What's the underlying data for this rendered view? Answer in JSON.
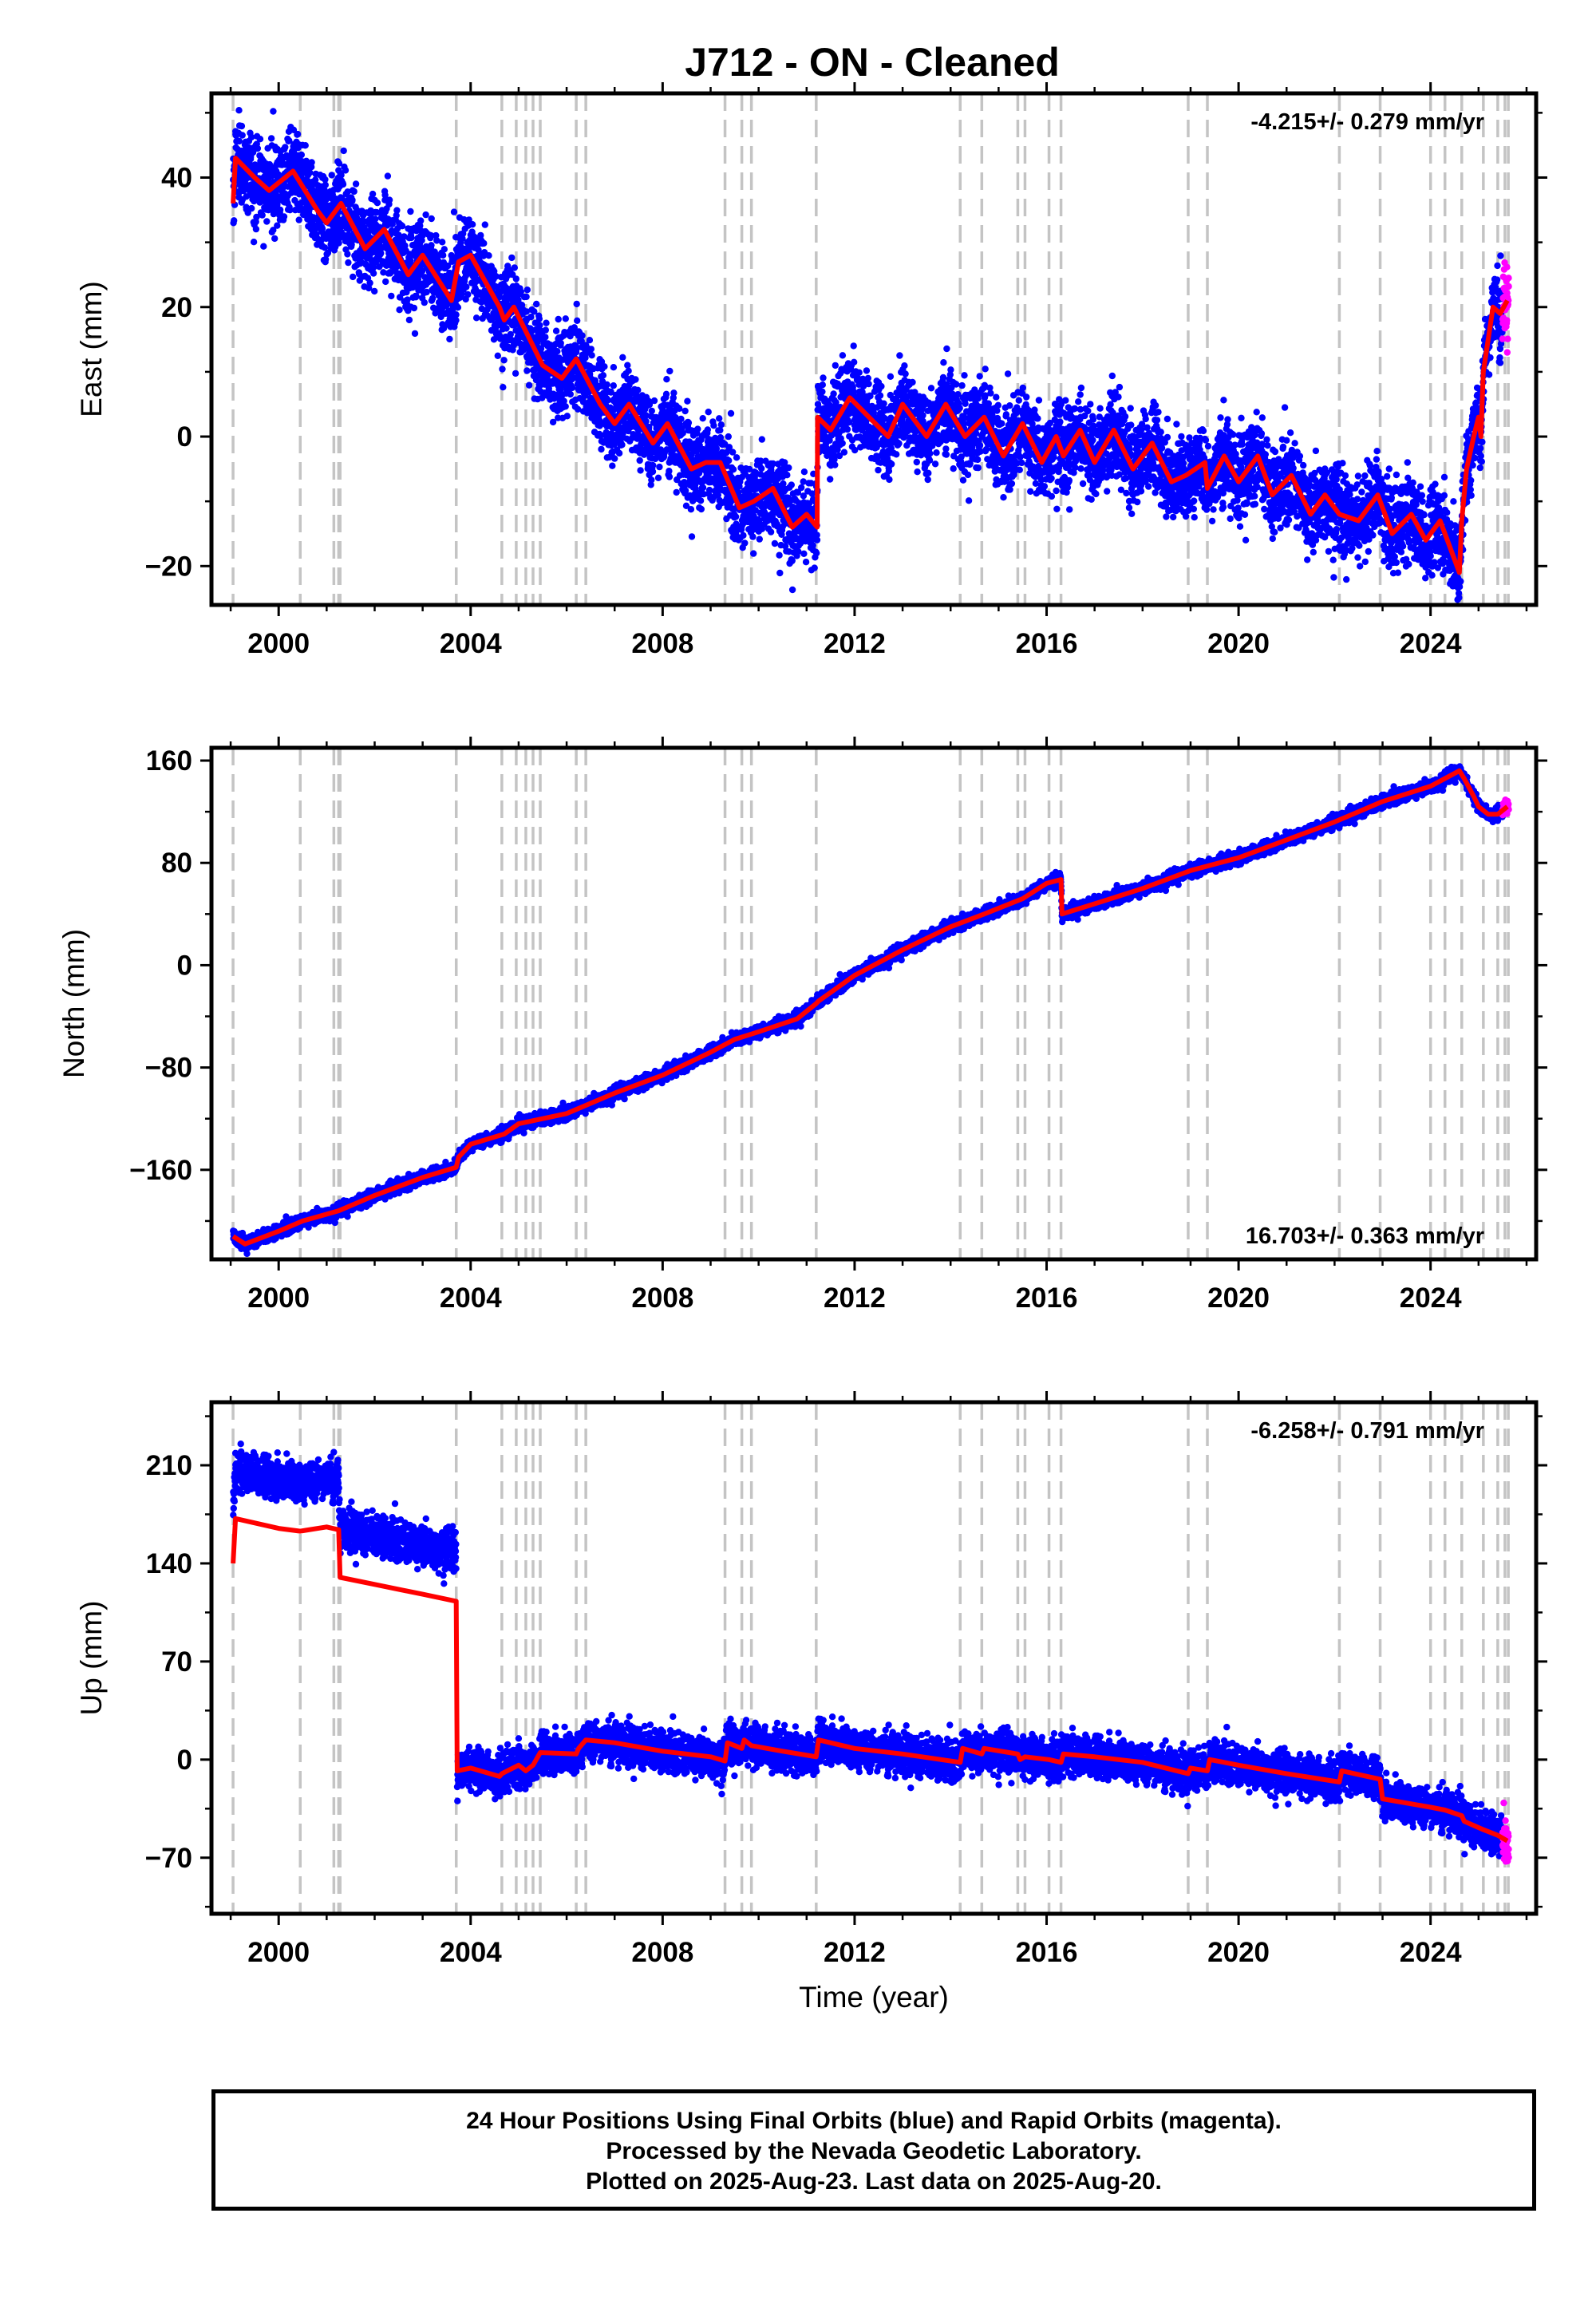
{
  "chart_data": [
    {
      "type": "scatter",
      "title": "J712  - ON - Cleaned",
      "xlabel": "",
      "ylabel": "East (mm)",
      "xlim": [
        1998.6,
        2026.2
      ],
      "ylim": [
        -26,
        53
      ],
      "xticks": [
        2000,
        2004,
        2008,
        2012,
        2016,
        2020,
        2024
      ],
      "xtick_labels": [
        "2000",
        "2004",
        "2008",
        "2012",
        "2016",
        "2020",
        "2024"
      ],
      "yticks": [
        -20,
        0,
        20,
        40
      ],
      "ytick_labels": [
        "−20",
        "0",
        "20",
        "40"
      ],
      "rate_label": "-4.215+/- 0.279 mm/yr",
      "rate_position": "top-right",
      "grid": false,
      "data_start": 1999.05,
      "data_end": 2025.63,
      "rapid_start": 2025.5,
      "series": [
        {
          "name": "Final Orbits (blue)",
          "color": "#0000ff",
          "kind": "points",
          "spread": 4.5
        },
        {
          "name": "Rapid Orbits (magenta)",
          "color": "#ff00ff",
          "kind": "points"
        },
        {
          "name": "model",
          "color": "#ff0000",
          "kind": "line",
          "points": [
            [
              1999.05,
              36
            ],
            [
              1999.1,
              43
            ],
            [
              1999.5,
              40
            ],
            [
              1999.8,
              38
            ],
            [
              2000.3,
              41
            ],
            [
              2000.8,
              35
            ],
            [
              2001.0,
              33
            ],
            [
              2001.3,
              36
            ],
            [
              2001.8,
              29
            ],
            [
              2002.2,
              32
            ],
            [
              2002.7,
              25
            ],
            [
              2003.0,
              28
            ],
            [
              2003.6,
              21
            ],
            [
              2003.75,
              27
            ],
            [
              2004.0,
              28
            ],
            [
              2004.6,
              20
            ],
            [
              2004.7,
              18
            ],
            [
              2004.9,
              20
            ],
            [
              2005.5,
              11
            ],
            [
              2005.9,
              9
            ],
            [
              2006.2,
              12
            ],
            [
              2006.7,
              5
            ],
            [
              2007.0,
              2
            ],
            [
              2007.3,
              5
            ],
            [
              2007.8,
              -1
            ],
            [
              2008.1,
              2
            ],
            [
              2008.6,
              -5
            ],
            [
              2008.9,
              -4
            ],
            [
              2009.2,
              -4
            ],
            [
              2009.6,
              -11
            ],
            [
              2009.9,
              -10
            ],
            [
              2010.3,
              -8
            ],
            [
              2010.7,
              -14
            ],
            [
              2011.0,
              -12
            ],
            [
              2011.22,
              -14
            ],
            [
              2011.23,
              3
            ],
            [
              2011.5,
              1
            ],
            [
              2011.9,
              6
            ],
            [
              2012.3,
              3
            ],
            [
              2012.7,
              0
            ],
            [
              2013.0,
              5
            ],
            [
              2013.5,
              0
            ],
            [
              2013.9,
              5
            ],
            [
              2014.3,
              0
            ],
            [
              2014.7,
              3
            ],
            [
              2015.1,
              -3
            ],
            [
              2015.5,
              2
            ],
            [
              2015.9,
              -4
            ],
            [
              2016.2,
              0
            ],
            [
              2016.35,
              -3
            ],
            [
              2016.7,
              1
            ],
            [
              2017.0,
              -4
            ],
            [
              2017.4,
              1
            ],
            [
              2017.8,
              -5
            ],
            [
              2018.2,
              -1
            ],
            [
              2018.6,
              -7
            ],
            [
              2018.9,
              -6
            ],
            [
              2019.3,
              -4
            ],
            [
              2019.35,
              -8
            ],
            [
              2019.7,
              -3
            ],
            [
              2020.0,
              -7
            ],
            [
              2020.4,
              -3
            ],
            [
              2020.7,
              -9
            ],
            [
              2021.1,
              -6
            ],
            [
              2021.5,
              -12
            ],
            [
              2021.8,
              -9
            ],
            [
              2022.1,
              -12
            ],
            [
              2022.5,
              -13
            ],
            [
              2022.9,
              -9
            ],
            [
              2023.2,
              -15
            ],
            [
              2023.6,
              -12
            ],
            [
              2023.9,
              -16
            ],
            [
              2024.2,
              -13
            ],
            [
              2024.55,
              -20
            ],
            [
              2024.6,
              -21
            ],
            [
              2024.65,
              -13
            ],
            [
              2024.75,
              -5
            ],
            [
              2024.9,
              0
            ],
            [
              2025.0,
              3
            ],
            [
              2025.05,
              0
            ],
            [
              2025.1,
              10
            ],
            [
              2025.2,
              15
            ],
            [
              2025.3,
              20
            ],
            [
              2025.45,
              19
            ],
            [
              2025.6,
              21
            ]
          ]
        }
      ],
      "event_lines": [
        1999.05,
        2000.45,
        2001.15,
        2001.25,
        2001.28,
        2003.7,
        2004.65,
        2004.95,
        2005.15,
        2005.3,
        2005.45,
        2006.2,
        2006.4,
        2009.3,
        2009.65,
        2009.85,
        2011.2,
        2014.2,
        2014.65,
        2015.4,
        2015.55,
        2016.05,
        2016.3,
        2018.95,
        2019.35,
        2022.1,
        2022.95,
        2024.0,
        2024.3,
        2024.65,
        2025.1,
        2025.4,
        2025.55,
        2025.62
      ]
    },
    {
      "type": "scatter",
      "title": "",
      "xlabel": "",
      "ylabel": "North (mm)",
      "xlim": [
        1998.6,
        2026.2
      ],
      "ylim": [
        -230,
        170
      ],
      "xticks": [
        2000,
        2004,
        2008,
        2012,
        2016,
        2020,
        2024
      ],
      "xtick_labels": [
        "2000",
        "2004",
        "2008",
        "2012",
        "2016",
        "2020",
        "2024"
      ],
      "yticks": [
        -160,
        -80,
        0,
        80,
        160
      ],
      "ytick_labels": [
        "−160",
        "−80",
        "0",
        "80",
        "160"
      ],
      "rate_label": "16.703+/- 0.363 mm/yr",
      "rate_position": "bottom-right",
      "grid": false,
      "data_start": 1999.05,
      "data_end": 2025.63,
      "rapid_start": 2025.5,
      "series": [
        {
          "name": "Final Orbits (blue)",
          "color": "#0000ff",
          "kind": "points",
          "spread": 3.5
        },
        {
          "name": "Rapid Orbits (magenta)",
          "color": "#ff00ff",
          "kind": "points"
        },
        {
          "name": "model",
          "color": "#ff0000",
          "kind": "line",
          "points": [
            [
              1999.05,
              -212
            ],
            [
              1999.3,
              -218
            ],
            [
              2000.0,
              -208
            ],
            [
              2000.5,
              -200
            ],
            [
              2001.25,
              -192
            ],
            [
              2002.0,
              -180
            ],
            [
              2003.0,
              -166
            ],
            [
              2003.7,
              -158
            ],
            [
              2003.75,
              -150
            ],
            [
              2004.0,
              -140
            ],
            [
              2004.7,
              -132
            ],
            [
              2005.0,
              -124
            ],
            [
              2006.0,
              -116
            ],
            [
              2007.0,
              -100
            ],
            [
              2008.0,
              -86
            ],
            [
              2009.0,
              -68
            ],
            [
              2009.5,
              -58
            ],
            [
              2010.0,
              -52
            ],
            [
              2010.8,
              -42
            ],
            [
              2011.2,
              -30
            ],
            [
              2011.25,
              -28
            ],
            [
              2012.0,
              -8
            ],
            [
              2013.0,
              12
            ],
            [
              2014.0,
              30
            ],
            [
              2014.7,
              40
            ],
            [
              2015.5,
              52
            ],
            [
              2016.0,
              64
            ],
            [
              2016.3,
              67
            ],
            [
              2016.32,
              40
            ],
            [
              2017.0,
              48
            ],
            [
              2018.0,
              60
            ],
            [
              2019.0,
              74
            ],
            [
              2020.0,
              84
            ],
            [
              2021.0,
              98
            ],
            [
              2022.0,
              112
            ],
            [
              2023.0,
              128
            ],
            [
              2024.0,
              140
            ],
            [
              2024.6,
              152
            ],
            [
              2024.7,
              146
            ],
            [
              2024.9,
              132
            ],
            [
              2025.0,
              124
            ],
            [
              2025.2,
              118
            ],
            [
              2025.4,
              118
            ],
            [
              2025.6,
              124
            ]
          ]
        }
      ],
      "event_lines": [
        1999.05,
        2000.45,
        2001.15,
        2001.25,
        2001.28,
        2003.7,
        2004.65,
        2004.95,
        2005.15,
        2005.3,
        2005.45,
        2006.2,
        2006.4,
        2009.3,
        2009.65,
        2009.85,
        2011.2,
        2014.2,
        2014.65,
        2015.4,
        2015.55,
        2016.05,
        2016.3,
        2018.95,
        2019.35,
        2022.1,
        2022.95,
        2024.0,
        2024.3,
        2024.65,
        2025.1,
        2025.4,
        2025.55,
        2025.62
      ]
    },
    {
      "type": "scatter",
      "title": "",
      "xlabel": "Time (year)",
      "ylabel": "Up (mm)",
      "xlim": [
        1998.6,
        2026.2
      ],
      "ylim": [
        -110,
        255
      ],
      "xticks": [
        2000,
        2004,
        2008,
        2012,
        2016,
        2020,
        2024
      ],
      "xtick_labels": [
        "2000",
        "2004",
        "2008",
        "2012",
        "2016",
        "2020",
        "2024"
      ],
      "yticks": [
        -70,
        0,
        70,
        140,
        210
      ],
      "ytick_labels": [
        "−70",
        "0",
        "70",
        "140",
        "210"
      ],
      "rate_label": "-6.258+/- 0.791 mm/yr",
      "rate_position": "top-right",
      "grid": false,
      "data_start": 1999.05,
      "data_end": 2025.63,
      "rapid_start": 2025.5,
      "series": [
        {
          "name": "Final Orbits (blue)",
          "color": "#0000ff",
          "kind": "points",
          "spread": 10
        },
        {
          "name": "Rapid Orbits (magenta)",
          "color": "#ff00ff",
          "kind": "points"
        },
        {
          "name": "model",
          "color": "#ff0000",
          "kind": "line",
          "points": [
            [
              1999.05,
              140
            ],
            [
              1999.1,
              172
            ],
            [
              2000.0,
              165
            ],
            [
              2000.45,
              163
            ],
            [
              2001.0,
              166
            ],
            [
              2001.25,
              164
            ],
            [
              2001.28,
              130
            ],
            [
              2002.0,
              125
            ],
            [
              2003.0,
              118
            ],
            [
              2003.7,
              113
            ],
            [
              2003.72,
              -8
            ],
            [
              2004.0,
              -6
            ],
            [
              2004.6,
              -12
            ],
            [
              2004.65,
              -10
            ],
            [
              2005.0,
              -4
            ],
            [
              2005.15,
              -8
            ],
            [
              2005.3,
              -4
            ],
            [
              2005.45,
              5
            ],
            [
              2006.2,
              4
            ],
            [
              2006.25,
              8
            ],
            [
              2006.4,
              14
            ],
            [
              2007.0,
              12
            ],
            [
              2008.0,
              6
            ],
            [
              2009.0,
              2
            ],
            [
              2009.3,
              -1
            ],
            [
              2009.35,
              12
            ],
            [
              2009.65,
              8
            ],
            [
              2009.7,
              14
            ],
            [
              2009.85,
              10
            ],
            [
              2010.5,
              6
            ],
            [
              2011.2,
              2
            ],
            [
              2011.25,
              14
            ],
            [
              2012.0,
              8
            ],
            [
              2013.0,
              4
            ],
            [
              2014.2,
              -2
            ],
            [
              2014.25,
              8
            ],
            [
              2014.65,
              4
            ],
            [
              2014.7,
              8
            ],
            [
              2015.4,
              4
            ],
            [
              2015.45,
              0
            ],
            [
              2015.55,
              2
            ],
            [
              2016.05,
              0
            ],
            [
              2016.3,
              -2
            ],
            [
              2016.35,
              4
            ],
            [
              2017.0,
              2
            ],
            [
              2018.0,
              -2
            ],
            [
              2018.95,
              -10
            ],
            [
              2019.0,
              -6
            ],
            [
              2019.35,
              -8
            ],
            [
              2019.4,
              0
            ],
            [
              2020.0,
              -4
            ],
            [
              2021.0,
              -10
            ],
            [
              2022.1,
              -16
            ],
            [
              2022.15,
              -8
            ],
            [
              2022.95,
              -14
            ],
            [
              2023.0,
              -28
            ],
            [
              2024.0,
              -34
            ],
            [
              2024.3,
              -36
            ],
            [
              2024.65,
              -40
            ],
            [
              2024.7,
              -44
            ],
            [
              2025.1,
              -50
            ],
            [
              2025.4,
              -54
            ],
            [
              2025.6,
              -58
            ]
          ]
        }
      ],
      "segments": [
        {
          "t0": 1999.05,
          "t1": 2003.7,
          "offset": 35
        },
        {
          "t0": 2003.72,
          "t1": 2025.63,
          "offset": 0
        }
      ],
      "event_lines": [
        1999.05,
        2000.45,
        2001.15,
        2001.25,
        2001.28,
        2003.7,
        2004.65,
        2004.95,
        2005.15,
        2005.3,
        2005.45,
        2006.2,
        2006.4,
        2009.3,
        2009.65,
        2009.85,
        2011.2,
        2014.2,
        2014.65,
        2015.4,
        2015.55,
        2016.05,
        2016.3,
        2018.95,
        2019.35,
        2022.1,
        2022.95,
        2024.0,
        2024.3,
        2024.65,
        2025.1,
        2025.4,
        2025.55,
        2025.62
      ]
    }
  ],
  "footer": {
    "line1": "24 Hour Positions Using Final Orbits (blue) and Rapid Orbits (magenta).",
    "line2": "Processed by the Nevada Geodetic Laboratory.",
    "line3": "Plotted on 2025-Aug-23. Last data on 2025-Aug-20."
  }
}
